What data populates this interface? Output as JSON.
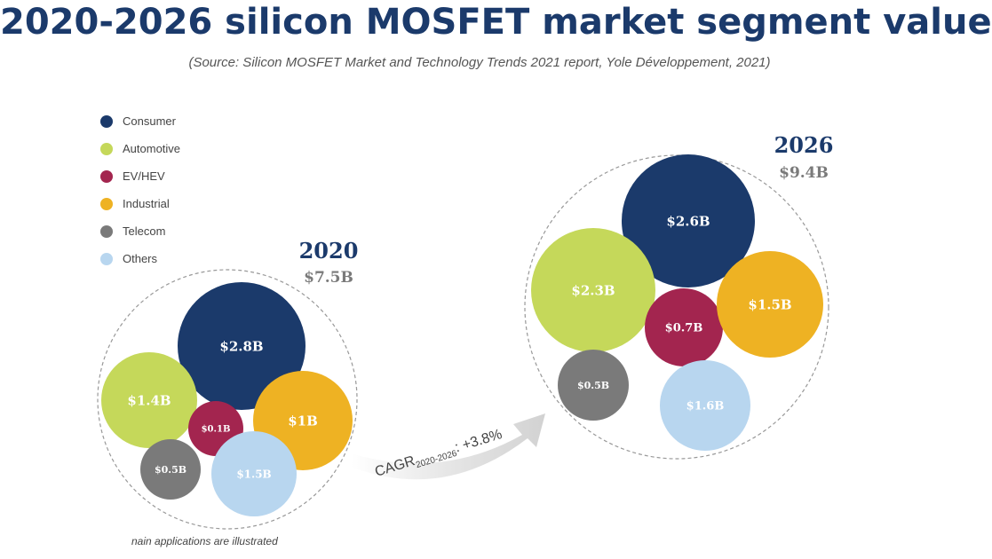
{
  "header": {
    "title": "2020-2026 silicon MOSFET market segment value",
    "subtitle": "(Source: Silicon MOSFET Market and Technology Trends 2021 report, Yole Développement, 2021)"
  },
  "footnote": "nain applications are illustrated",
  "chart_data": {
    "type": "bubble",
    "legend_position": "top-left",
    "segments": [
      {
        "name": "Consumer",
        "color": "#1b3a6b"
      },
      {
        "name": "Automotive",
        "color": "#c5d85a"
      },
      {
        "name": "EV/HEV",
        "color": "#a3254f"
      },
      {
        "name": "Industrial",
        "color": "#eeb223"
      },
      {
        "name": "Telecom",
        "color": "#7a7a7a"
      },
      {
        "name": "Others",
        "color": "#b8d6ef"
      }
    ],
    "groups": [
      {
        "year": "2020",
        "total": "$7.5B",
        "values": [
          {
            "segment": "Consumer",
            "value": 2.8,
            "label": "$2.8B"
          },
          {
            "segment": "Automotive",
            "value": 1.4,
            "label": "$1.4B"
          },
          {
            "segment": "EV/HEV",
            "value": 0.1,
            "label": "$0.1B"
          },
          {
            "segment": "Industrial",
            "value": 1.0,
            "label": "$1B"
          },
          {
            "segment": "Telecom",
            "value": 0.5,
            "label": "$0.5B"
          },
          {
            "segment": "Others",
            "value": 1.5,
            "label": "$1.5B"
          }
        ]
      },
      {
        "year": "2026",
        "total": "$9.4B",
        "values": [
          {
            "segment": "Consumer",
            "value": 2.6,
            "label": "$2.6B"
          },
          {
            "segment": "Automotive",
            "value": 2.3,
            "label": "$2.3B"
          },
          {
            "segment": "EV/HEV",
            "value": 0.7,
            "label": "$0.7B"
          },
          {
            "segment": "Industrial",
            "value": 1.5,
            "label": "$1.5B"
          },
          {
            "segment": "Telecom",
            "value": 0.5,
            "label": "$0.5B"
          },
          {
            "segment": "Others",
            "value": 1.6,
            "label": "$1.6B"
          }
        ]
      }
    ],
    "cagr": {
      "prefix": "CAGR",
      "period": "2020-2026",
      "value": ": +3.8%"
    }
  }
}
